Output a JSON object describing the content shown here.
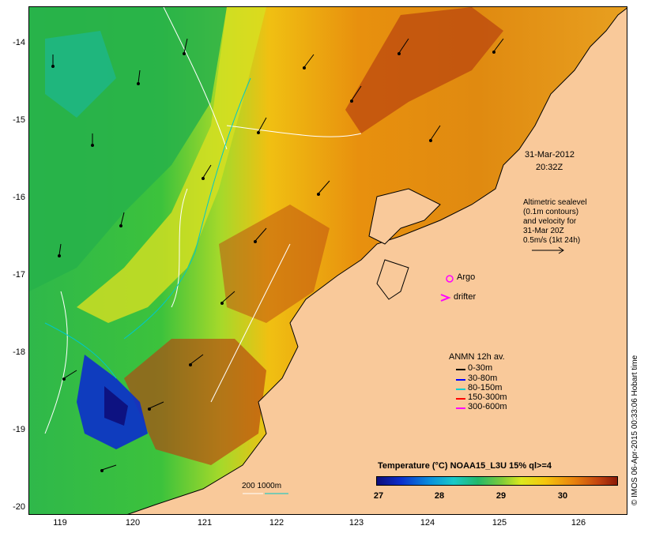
{
  "map": {
    "lat_ticks": [
      "-14",
      "-15",
      "-16",
      "-17",
      "-18",
      "-19",
      "-20"
    ],
    "lon_ticks": [
      "119",
      "120",
      "121",
      "122",
      "123",
      "124",
      "125",
      "126"
    ],
    "datetime_line1": "31-Mar-2012",
    "datetime_line2": "20:32Z",
    "altimetry_lines": [
      "Altimetric sealevel",
      "(0.1m contours)",
      "and velocity for",
      "31-Mar 20Z",
      "0.5m/s (1kt 24h)"
    ],
    "argo_label": "Argo",
    "drifter_label": "drifter",
    "depth_label": "200  1000m",
    "credit": "© IMOS 06-Apr-2015 00:33:06 Hobart time"
  },
  "legend": {
    "title": "ANMN 12h av.",
    "items": [
      {
        "label": "0-30m",
        "color": "#000000"
      },
      {
        "label": "30-80m",
        "color": "#0000ff"
      },
      {
        "label": "80-150m",
        "color": "#00d0d0"
      },
      {
        "label": "150-300m",
        "color": "#ff0000"
      },
      {
        "label": "300-600m",
        "color": "#ff00ff"
      }
    ]
  },
  "colorbar": {
    "title": "Temperature (°C) NOAA15_L3U 15% ql>=4",
    "ticks": [
      "27",
      "28",
      "29",
      "30"
    ]
  },
  "colors": {
    "land": "#f9c99a",
    "coast": "#000000",
    "contour": "#ffffff",
    "depth_200": "#ffffff",
    "depth_1000": "#00c8c8",
    "argo": "#ff00ff"
  }
}
